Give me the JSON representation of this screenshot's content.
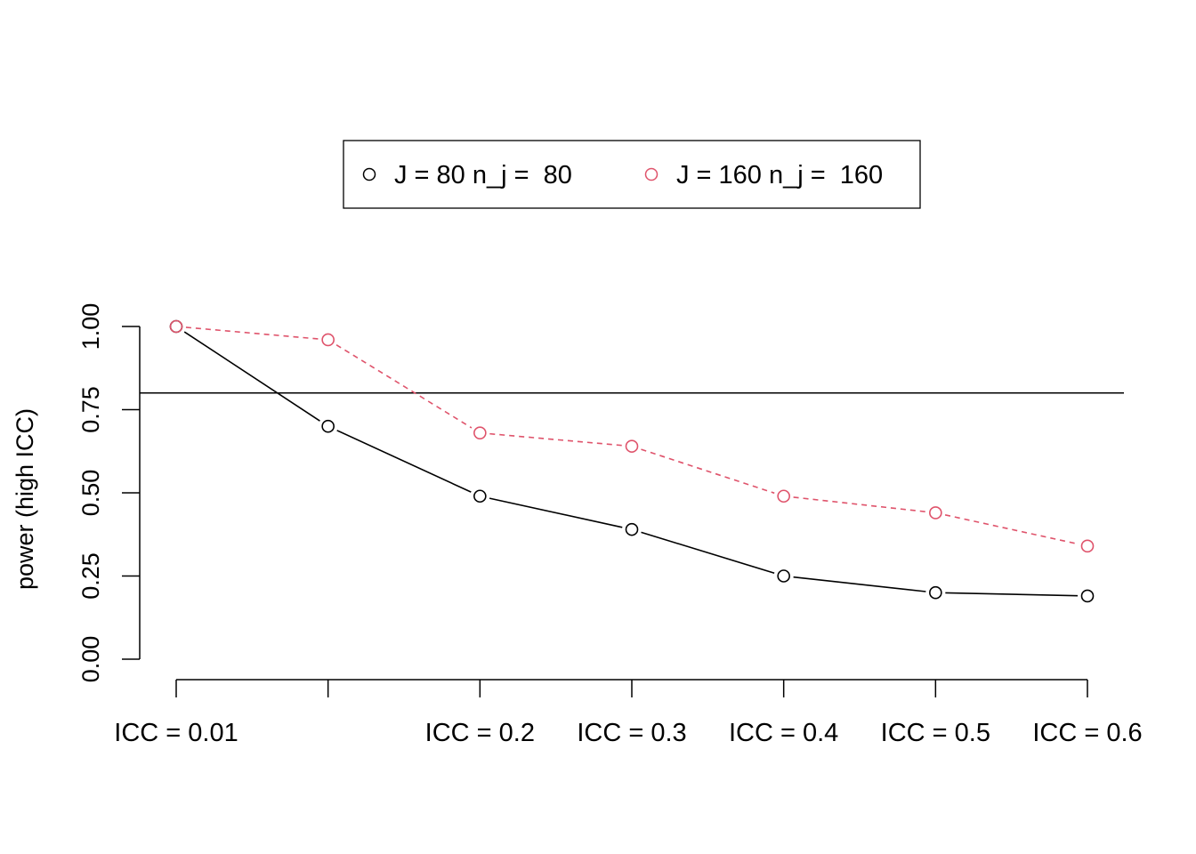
{
  "chart_data": {
    "type": "line",
    "title": "",
    "xlabel": "",
    "ylabel": "power (high ICC)",
    "ylim": [
      0,
      1
    ],
    "yticks": [
      "0.00",
      "0.25",
      "0.50",
      "0.75",
      "1.00"
    ],
    "x_positions": [
      1,
      2,
      3,
      4,
      5,
      6,
      7
    ],
    "x_tick_labels": [
      "ICC = 0.01",
      "",
      "ICC = 0.2",
      "ICC = 0.3",
      "ICC = 0.4",
      "ICC = 0.5",
      "ICC = 0.6"
    ],
    "reference_line": 0.8,
    "legend_position": "top",
    "series": [
      {
        "name": "J = 80 n_j =  80",
        "color": "#000000",
        "line": "solid",
        "marker": "open-circle",
        "values": [
          1.0,
          0.7,
          0.49,
          0.39,
          0.25,
          0.2,
          0.19
        ]
      },
      {
        "name": "J = 160 n_j =  160",
        "color": "#DF536B",
        "line": "dashed",
        "marker": "open-circle",
        "values": [
          1.0,
          0.96,
          0.68,
          0.64,
          0.49,
          0.44,
          0.34
        ]
      }
    ]
  }
}
